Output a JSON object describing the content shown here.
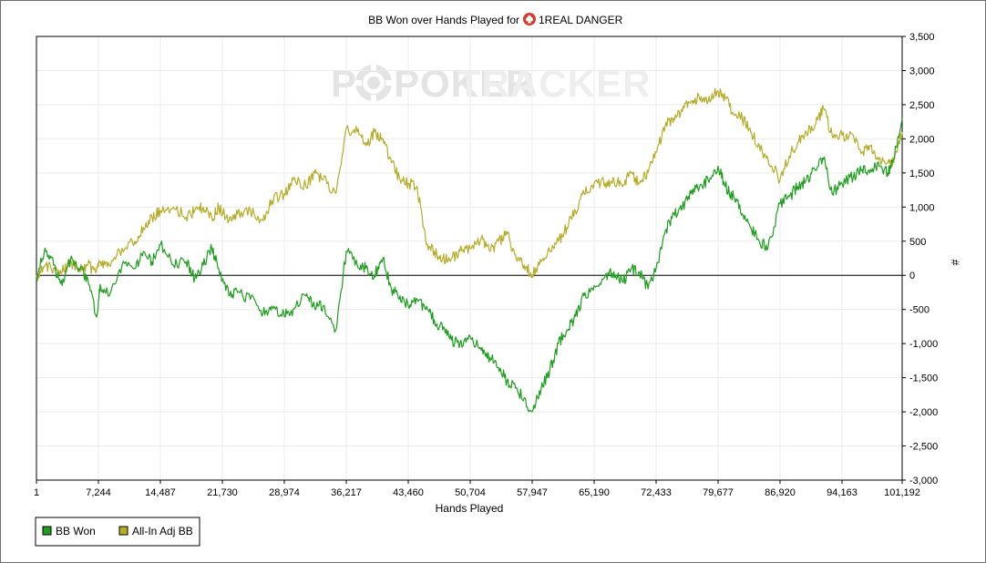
{
  "chart_data": {
    "type": "line",
    "title_prefix": "BB Won over Hands Played for",
    "player_name": "1REAL DANGER",
    "player_icon": "spade-icon",
    "watermark": {
      "part1": "POKER",
      "part2": "TRACKER"
    },
    "xlabel": "Hands Played",
    "ylabel": "#",
    "xlim": [
      1,
      101192
    ],
    "ylim": [
      -3000,
      3500
    ],
    "x_ticks": [
      1,
      7244,
      14487,
      21730,
      28974,
      36217,
      43460,
      50704,
      57947,
      65190,
      72433,
      79677,
      86920,
      94163,
      101192
    ],
    "x_tick_labels": [
      "1",
      "7,244",
      "14,487",
      "21,730",
      "28,974",
      "36,217",
      "43,460",
      "50,704",
      "57,947",
      "65,190",
      "72,433",
      "79,677",
      "86,920",
      "94,163",
      "101,192"
    ],
    "y_ticks": [
      -3000,
      -2500,
      -2000,
      -1500,
      -1000,
      -500,
      0,
      500,
      1000,
      1500,
      2000,
      2500,
      3000,
      3500
    ],
    "y_tick_labels": [
      "-3,000",
      "-2,500",
      "-2,000",
      "-1,500",
      "-1,000",
      "-500",
      "0",
      "500",
      "1,000",
      "1,500",
      "2,000",
      "2,500",
      "3,000",
      "3,500"
    ],
    "grid": true,
    "legend_position": "bottom-left",
    "series": [
      {
        "name": "BB Won",
        "color": "#1e9e1e",
        "x": [
          1,
          1000,
          2000,
          3000,
          4000,
          5000,
          6000,
          7000,
          7500,
          8500,
          10000,
          11500,
          12500,
          13500,
          14487,
          16000,
          17500,
          18500,
          19500,
          20500,
          21300,
          22500,
          23500,
          25000,
          26500,
          27500,
          28974,
          30000,
          31500,
          32500,
          33500,
          35000,
          36217,
          37500,
          38500,
          39500,
          40500,
          41500,
          42500,
          43460,
          44500,
          45500,
          46500,
          47500,
          48500,
          49500,
          50704,
          52000,
          53000,
          54000,
          55000,
          56000,
          57000,
          57947,
          59000,
          60000,
          61000,
          62000,
          63000,
          64000,
          65190,
          66500,
          67500,
          68500,
          69500,
          70500,
          71500,
          72433,
          73500,
          74500,
          75500,
          76500,
          77500,
          78500,
          79677,
          80500,
          81500,
          82500,
          83500,
          84500,
          85500,
          86920,
          88000,
          89000,
          90000,
          91000,
          92000,
          93000,
          94163,
          95500,
          96500,
          97500,
          98500,
          99500,
          100200,
          101192
        ],
        "values": [
          -50,
          400,
          150,
          -150,
          250,
          100,
          -50,
          -600,
          -150,
          -300,
          150,
          100,
          350,
          200,
          450,
          150,
          200,
          -50,
          150,
          400,
          100,
          -300,
          -250,
          -350,
          -550,
          -450,
          -600,
          -500,
          -300,
          -450,
          -450,
          -800,
          350,
          150,
          100,
          0,
          250,
          -200,
          -300,
          -450,
          -350,
          -500,
          -650,
          -800,
          -950,
          -1000,
          -900,
          -1100,
          -1200,
          -1350,
          -1550,
          -1650,
          -1800,
          -2000,
          -1650,
          -1400,
          -1000,
          -800,
          -600,
          -300,
          -150,
          0,
          50,
          -100,
          100,
          50,
          -200,
          100,
          650,
          900,
          1000,
          1200,
          1300,
          1400,
          1600,
          1300,
          1150,
          900,
          700,
          500,
          400,
          1050,
          1150,
          1300,
          1400,
          1550,
          1700,
          1200,
          1350,
          1450,
          1550,
          1550,
          1600,
          1500,
          1700,
          2300
        ]
      },
      {
        "name": "All-In Adj BB",
        "color": "#b5ad2a",
        "x": [
          1,
          1000,
          2000,
          3000,
          4000,
          5000,
          6000,
          7000,
          7500,
          8500,
          10000,
          11500,
          12500,
          13500,
          14487,
          16000,
          17500,
          18500,
          19500,
          20500,
          21300,
          22500,
          23500,
          25000,
          26500,
          27500,
          28974,
          30000,
          31500,
          32500,
          33500,
          35000,
          36217,
          37500,
          38500,
          39500,
          40500,
          41500,
          42500,
          43460,
          44500,
          45500,
          46500,
          47500,
          48500,
          49500,
          50704,
          52000,
          53000,
          54000,
          55000,
          56000,
          57000,
          57947,
          59000,
          60000,
          61000,
          62000,
          63000,
          64000,
          65190,
          66500,
          67500,
          68500,
          69500,
          70500,
          71500,
          72433,
          73500,
          74500,
          75500,
          76500,
          77500,
          78500,
          79677,
          80500,
          81500,
          82500,
          83500,
          84500,
          85500,
          86920,
          88000,
          89000,
          90000,
          91000,
          92000,
          93000,
          94163,
          95500,
          96500,
          97500,
          98500,
          99500,
          100200,
          101192
        ],
        "values": [
          0,
          150,
          100,
          50,
          200,
          100,
          150,
          50,
          200,
          150,
          400,
          500,
          700,
          850,
          950,
          1000,
          850,
          950,
          1000,
          850,
          1000,
          800,
          900,
          950,
          800,
          1100,
          1200,
          1400,
          1300,
          1500,
          1400,
          1200,
          2150,
          2100,
          1900,
          2100,
          2000,
          1650,
          1400,
          1350,
          1300,
          500,
          350,
          250,
          250,
          350,
          400,
          550,
          350,
          500,
          600,
          300,
          150,
          0,
          200,
          350,
          500,
          700,
          950,
          1200,
          1350,
          1350,
          1400,
          1300,
          1500,
          1350,
          1500,
          1800,
          2200,
          2300,
          2400,
          2550,
          2600,
          2550,
          2700,
          2600,
          2350,
          2300,
          2100,
          1900,
          1700,
          1400,
          1750,
          1950,
          2100,
          2200,
          2450,
          2050,
          2050,
          2050,
          1800,
          1900,
          1700,
          1650,
          1650,
          2100
        ]
      }
    ]
  }
}
